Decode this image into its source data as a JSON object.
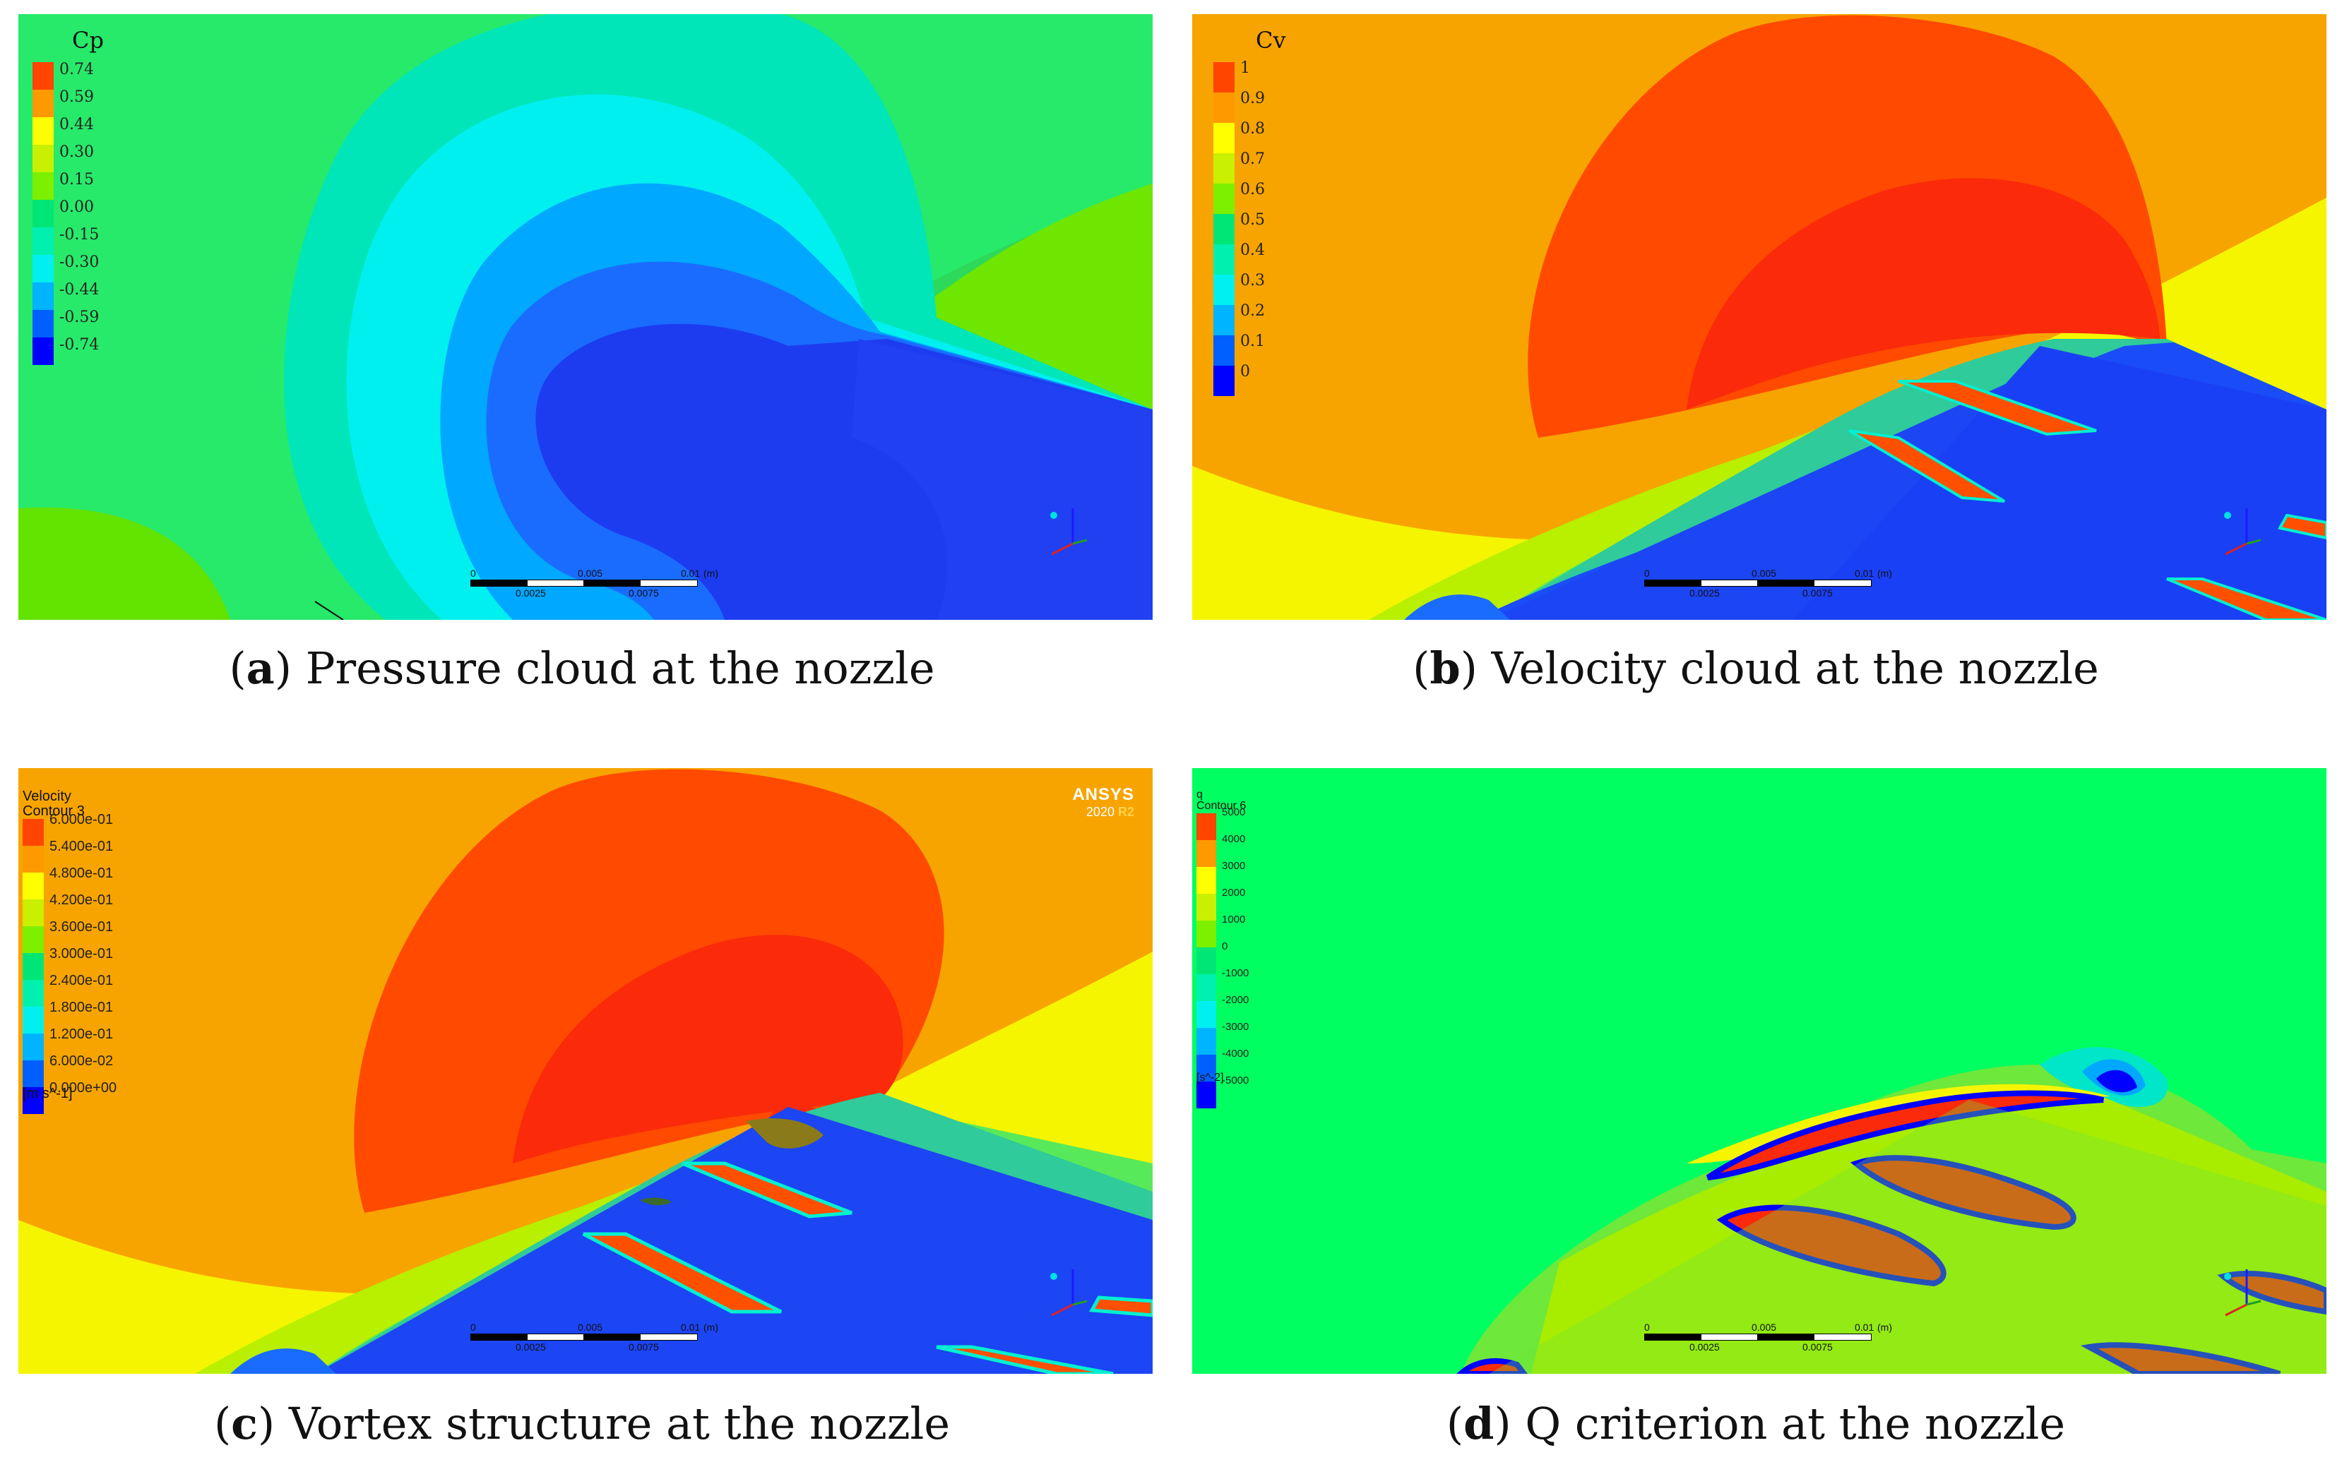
{
  "panels": {
    "a": {
      "letter": "a",
      "caption": "Pressure cloud at the nozzle",
      "legend": {
        "title": "Cp",
        "ticks": [
          "0.74",
          "0.59",
          "0.44",
          "0.30",
          "0.15",
          "0.00",
          "-0.15",
          "-0.30",
          "-0.44",
          "-0.59",
          "-0.74"
        ]
      }
    },
    "b": {
      "letter": "b",
      "caption": "Velocity cloud at the nozzle",
      "legend": {
        "title": "Cv",
        "ticks": [
          "1",
          "0.9",
          "0.8",
          "0.7",
          "0.6",
          "0.5",
          "0.4",
          "0.3",
          "0.2",
          "0.1",
          "0"
        ]
      }
    },
    "c": {
      "letter": "c",
      "caption": "Vortex structure at the nozzle",
      "legend": {
        "title": "Velocity\nContour 3",
        "ticks": [
          "6.000e-01",
          "5.400e-01",
          "4.800e-01",
          "4.200e-01",
          "3.600e-01",
          "3.000e-01",
          "2.400e-01",
          "1.800e-01",
          "1.200e-01",
          "6.000e-02",
          "0.000e+00"
        ],
        "unit": "[m s^-1]"
      },
      "logo": {
        "brand": "ANSYS",
        "version": "2020",
        "release": "R2"
      }
    },
    "d": {
      "letter": "d",
      "caption": "Q criterion at the nozzle",
      "legend": {
        "title": "q\nContour 6",
        "ticks": [
          "5000",
          "4000",
          "3000",
          "2000",
          "1000",
          "0",
          "-1000",
          "-2000",
          "-3000",
          "-4000",
          "-5000"
        ],
        "unit": "[s^-2]"
      }
    }
  },
  "scale_bar": {
    "top_labels": [
      "0",
      "0.005",
      "0.01",
      "(m)"
    ],
    "bottom_labels": [
      "0.0025",
      "0.0075"
    ]
  },
  "colormap": [
    "#ff4500",
    "#ff9900",
    "#ffff00",
    "#c8f000",
    "#7df000",
    "#00e676",
    "#00f0b0",
    "#00f0f0",
    "#00b4ff",
    "#0060ff",
    "#0000ff"
  ],
  "colors": {
    "red": "#fa2a0a",
    "orange_red": "#ff4a00",
    "orange": "#f7a400",
    "yellow": "#f5f500",
    "green": "#00ff60",
    "light_green": "#6cf000",
    "aqua_green": "#00f09c",
    "cyan": "#00f0f0",
    "sky_blue": "#00a8ff",
    "blue": "#0055ff",
    "deep_blue": "#0033f0"
  }
}
